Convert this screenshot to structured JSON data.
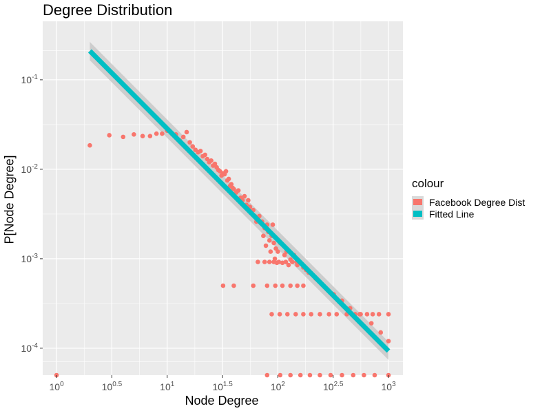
{
  "chart_data": {
    "type": "scatter",
    "title": "Degree Distribution",
    "xlabel": "Node Degree",
    "ylabel": "P[Node Degree]",
    "x_scale": "log10",
    "y_scale": "log10",
    "xlim": [
      0.75,
      1350
    ],
    "ylim": [
      5e-05,
      0.45
    ],
    "x_ticks": [
      {
        "value": 1,
        "base": "10",
        "exp": "0"
      },
      {
        "value": 3.1623,
        "base": "10",
        "exp": "0.5"
      },
      {
        "value": 10,
        "base": "10",
        "exp": "1"
      },
      {
        "value": 31.623,
        "base": "10",
        "exp": "1.5"
      },
      {
        "value": 100,
        "base": "10",
        "exp": "2"
      },
      {
        "value": 316.23,
        "base": "10",
        "exp": "2.5"
      },
      {
        "value": 1000,
        "base": "10",
        "exp": "3"
      }
    ],
    "y_ticks": [
      {
        "value": 0.1,
        "base": "10",
        "exp": "-1"
      },
      {
        "value": 0.01,
        "base": "10",
        "exp": "-2"
      },
      {
        "value": 0.001,
        "base": "10",
        "exp": "-3"
      },
      {
        "value": 0.0001,
        "base": "10",
        "exp": "-4"
      }
    ],
    "grid": true,
    "legend": {
      "title": "colour",
      "position": "right",
      "items": [
        {
          "label": "Facebook Degree Dist",
          "color": "#F8766D"
        },
        {
          "label": "Fitted Line",
          "color": "#00BFC4"
        }
      ]
    },
    "series": [
      {
        "name": "Facebook Degree Dist",
        "color": "#F8766D",
        "points": [
          [
            1,
            5e-05
          ],
          [
            2,
            0.0185
          ],
          [
            3,
            0.024
          ],
          [
            4,
            0.023
          ],
          [
            5,
            0.0245
          ],
          [
            6,
            0.0235
          ],
          [
            7,
            0.0235
          ],
          [
            8,
            0.025
          ],
          [
            9,
            0.025
          ],
          [
            10,
            0.027
          ],
          [
            11,
            0.025
          ],
          [
            12,
            0.0245
          ],
          [
            13,
            0.021
          ],
          [
            14,
            0.023
          ],
          [
            15,
            0.026
          ],
          [
            16,
            0.02
          ],
          [
            17,
            0.018
          ],
          [
            18,
            0.0165
          ],
          [
            19,
            0.0155
          ],
          [
            20,
            0.016
          ],
          [
            21,
            0.014
          ],
          [
            22,
            0.0145
          ],
          [
            23,
            0.013
          ],
          [
            24,
            0.012
          ],
          [
            25,
            0.0125
          ],
          [
            26,
            0.011
          ],
          [
            27,
            0.0115
          ],
          [
            28,
            0.0105
          ],
          [
            29,
            0.0098
          ],
          [
            30,
            0.0095
          ],
          [
            31,
            0.0085
          ],
          [
            32,
            0.009
          ],
          [
            33,
            0.0088
          ],
          [
            34,
            0.0095
          ],
          [
            35,
            0.0075
          ],
          [
            36,
            0.0078
          ],
          [
            37,
            0.0065
          ],
          [
            38,
            0.0068
          ],
          [
            39,
            0.0062
          ],
          [
            40,
            0.006
          ],
          [
            42,
            0.0055
          ],
          [
            44,
            0.0058
          ],
          [
            46,
            0.0048
          ],
          [
            48,
            0.0045
          ],
          [
            50,
            0.005
          ],
          [
            52,
            0.004
          ],
          [
            54,
            0.0045
          ],
          [
            56,
            0.0038
          ],
          [
            58,
            0.0034
          ],
          [
            60,
            0.0035
          ],
          [
            62,
            0.003
          ],
          [
            64,
            0.0026
          ],
          [
            66,
            0.0028
          ],
          [
            68,
            0.003
          ],
          [
            70,
            0.0025
          ],
          [
            72,
            0.0026
          ],
          [
            74,
            0.0018
          ],
          [
            76,
            0.0022
          ],
          [
            78,
            0.0014
          ],
          [
            80,
            0.0024
          ],
          [
            82,
            0.002
          ],
          [
            84,
            0.0016
          ],
          [
            86,
            0.0012
          ],
          [
            88,
            0.0018
          ],
          [
            90,
            0.0024
          ],
          [
            92,
            0.0015
          ],
          [
            94,
            0.001
          ],
          [
            96,
            0.0013
          ],
          [
            98,
            0.0009
          ],
          [
            100,
            0.0012
          ],
          [
            105,
            0.0015
          ],
          [
            110,
            0.0009
          ],
          [
            115,
            0.0011
          ],
          [
            120,
            0.0012
          ],
          [
            125,
            0.00085
          ],
          [
            130,
            0.00098
          ],
          [
            140,
            0.0011
          ],
          [
            150,
            0.00085
          ],
          [
            160,
            0.0009
          ],
          [
            170,
            0.0008
          ],
          [
            180,
            0.00075
          ],
          [
            190,
            0.0007
          ],
          [
            200,
            0.00068
          ],
          [
            220,
            0.0006
          ],
          [
            250,
            0.00052
          ],
          [
            280,
            0.00045
          ],
          [
            320,
            0.0004
          ],
          [
            380,
            0.00034
          ],
          [
            450,
            0.00028
          ],
          [
            550,
            0.00024
          ],
          [
            700,
            0.00019
          ],
          [
            850,
            0.00015
          ],
          [
            1000,
            0.00012
          ],
          [
            32,
            0.0005
          ],
          [
            40,
            0.0005
          ],
          [
            60,
            0.0005
          ],
          [
            80,
            0.0005
          ],
          [
            95,
            0.0005
          ],
          [
            110,
            0.0005
          ],
          [
            130,
            0.0005
          ],
          [
            150,
            0.0005
          ],
          [
            170,
            0.0005
          ],
          [
            66,
            0.00092
          ],
          [
            76,
            0.00092
          ],
          [
            84,
            0.00092
          ],
          [
            92,
            0.00092
          ],
          [
            102,
            0.00092
          ],
          [
            118,
            0.00092
          ],
          [
            135,
            0.00092
          ],
          [
            148,
            0.00092
          ],
          [
            88,
            0.00024
          ],
          [
            104,
            0.00024
          ],
          [
            122,
            0.00024
          ],
          [
            145,
            0.00024
          ],
          [
            170,
            0.00024
          ],
          [
            200,
            0.00024
          ],
          [
            240,
            0.00024
          ],
          [
            290,
            0.00024
          ],
          [
            340,
            0.00024
          ],
          [
            420,
            0.00024
          ],
          [
            500,
            0.00024
          ],
          [
            560,
            0.00024
          ],
          [
            640,
            0.00024
          ],
          [
            720,
            0.00024
          ],
          [
            820,
            0.00024
          ],
          [
            1000,
            0.00024
          ],
          [
            80,
            5e-05
          ],
          [
            105,
            5e-05
          ],
          [
            130,
            5e-05
          ],
          [
            160,
            5e-05
          ],
          [
            195,
            5e-05
          ],
          [
            240,
            5e-05
          ],
          [
            300,
            5e-05
          ],
          [
            380,
            5e-05
          ],
          [
            480,
            5e-05
          ],
          [
            600,
            5e-05
          ],
          [
            750,
            5e-05
          ],
          [
            1000,
            5e-05
          ]
        ]
      },
      {
        "name": "Fitted Line",
        "color": "#00BFC4",
        "type": "line",
        "x": [
          2,
          1000
        ],
        "y": [
          0.21,
          9.3e-05
        ],
        "band_lower": [
          0.165,
          7.4e-05
        ],
        "band_upper": [
          0.265,
          0.000118
        ],
        "band_color": "#C8C8C8"
      }
    ]
  }
}
